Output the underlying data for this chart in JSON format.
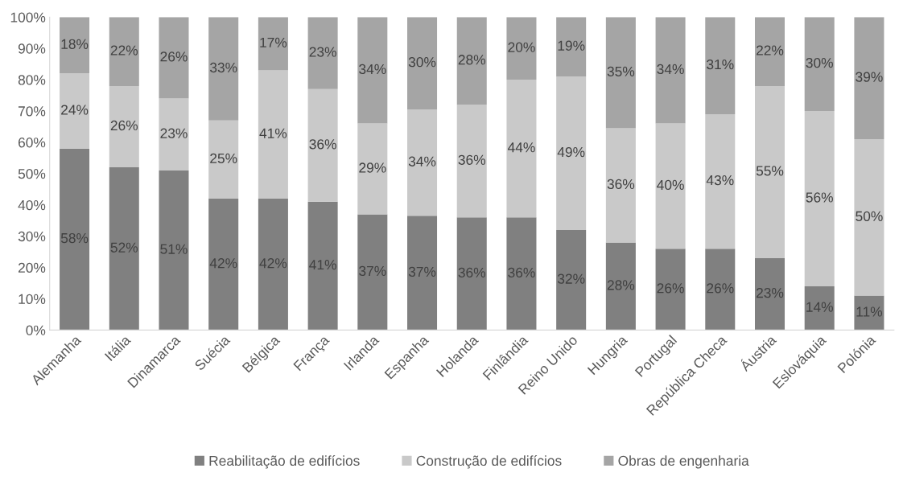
{
  "chart_data": {
    "type": "bar",
    "stacked": true,
    "grid": false,
    "legend": "bottom",
    "categories": [
      "Alemanha",
      "Itália",
      "Dinamarca",
      "Suécia",
      "Bélgica",
      "França",
      "Irlanda",
      "Espanha",
      "Holanda",
      "Finlândia",
      "Reino Unido",
      "Hungria",
      "Portugal",
      "República Checa",
      "Áustria",
      "Eslováquia",
      "Polónia"
    ],
    "series": [
      {
        "name": "Reabilitação de edifícios",
        "color": "#808080",
        "values": [
          58,
          52,
          51,
          42,
          42,
          41,
          37,
          36.5,
          36,
          36,
          32,
          28,
          26,
          26,
          23,
          14,
          11
        ],
        "value_labels": [
          "58%",
          "52%",
          "51%",
          "42%",
          "42%",
          "41%",
          "37%",
          "37%",
          "36%",
          "36%",
          "32%",
          "28%",
          "26%",
          "26%",
          "23%",
          "14%",
          "11%"
        ]
      },
      {
        "name": "Construção de edifícios",
        "color": "#c9c9c9",
        "values": [
          24,
          26,
          23,
          25,
          41,
          36,
          29,
          34,
          36,
          44,
          49,
          36.5,
          40,
          43,
          55,
          56,
          50
        ],
        "value_labels": [
          "24%",
          "26%",
          "23%",
          "25%",
          "41%",
          "36%",
          "29%",
          "34%",
          "36%",
          "44%",
          "49%",
          "36%",
          "40%",
          "43%",
          "55%",
          "56%",
          "50%"
        ]
      },
      {
        "name": "Obras de engenharia",
        "color": "#a5a5a5",
        "values": [
          18,
          22,
          26,
          33,
          17,
          23,
          34,
          29.5,
          28,
          20,
          19,
          35.5,
          34,
          31,
          22,
          30,
          39
        ],
        "value_labels": [
          "18%",
          "22%",
          "26%",
          "33%",
          "17%",
          "23%",
          "34%",
          "30%",
          "28%",
          "20%",
          "19%",
          "35%",
          "34%",
          "31%",
          "22%",
          "30%",
          "39%"
        ]
      }
    ],
    "ylim": [
      0,
      100
    ],
    "yticks": [
      {
        "value": 0,
        "label": "0%"
      },
      {
        "value": 10,
        "label": "10%"
      },
      {
        "value": 20,
        "label": "20%"
      },
      {
        "value": 30,
        "label": "30%"
      },
      {
        "value": 40,
        "label": "40%"
      },
      {
        "value": 50,
        "label": "50%"
      },
      {
        "value": 60,
        "label": "60%"
      },
      {
        "value": 70,
        "label": "70%"
      },
      {
        "value": 80,
        "label": "80%"
      },
      {
        "value": 90,
        "label": "90%"
      },
      {
        "value": 100,
        "label": "100%"
      }
    ]
  }
}
